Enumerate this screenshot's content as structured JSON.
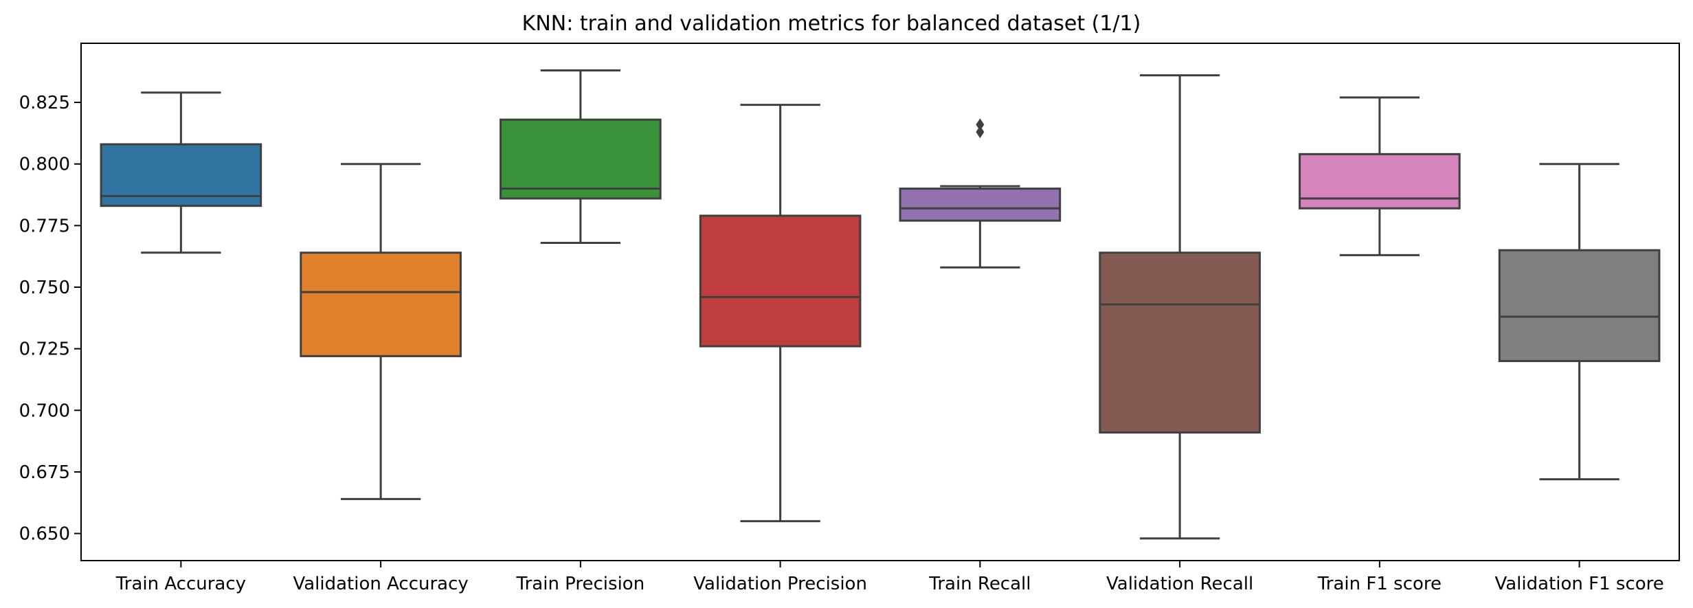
{
  "chart_data": {
    "type": "box",
    "title": "KNN: train and validation metrics for balanced dataset (1/1)",
    "xlabel": "",
    "ylabel": "",
    "ylim": [
      0.639,
      0.849
    ],
    "yticks": [
      "0.650",
      "0.675",
      "0.700",
      "0.725",
      "0.750",
      "0.775",
      "0.800",
      "0.825"
    ],
    "categories": [
      "Train Accuracy",
      "Validation Accuracy",
      "Train Precision",
      "Validation Precision",
      "Train Recall",
      "Validation Recall",
      "Train F1 score",
      "Validation F1 score"
    ],
    "boxes": [
      {
        "label": "Train Accuracy",
        "whisker_low": 0.764,
        "q1": 0.783,
        "median": 0.787,
        "q3": 0.808,
        "whisker_high": 0.829,
        "outliers": [],
        "color": "#3274a1"
      },
      {
        "label": "Validation Accuracy",
        "whisker_low": 0.664,
        "q1": 0.722,
        "median": 0.748,
        "q3": 0.764,
        "whisker_high": 0.8,
        "outliers": [],
        "color": "#e1812c"
      },
      {
        "label": "Train Precision",
        "whisker_low": 0.768,
        "q1": 0.786,
        "median": 0.79,
        "q3": 0.818,
        "whisker_high": 0.838,
        "outliers": [],
        "color": "#3a923a"
      },
      {
        "label": "Validation Precision",
        "whisker_low": 0.655,
        "q1": 0.726,
        "median": 0.746,
        "q3": 0.779,
        "whisker_high": 0.824,
        "outliers": [],
        "color": "#c03d3e"
      },
      {
        "label": "Train Recall",
        "whisker_low": 0.758,
        "q1": 0.777,
        "median": 0.782,
        "q3": 0.79,
        "whisker_high": 0.791,
        "outliers": [
          0.813,
          0.816
        ],
        "color": "#9372b2"
      },
      {
        "label": "Validation Recall",
        "whisker_low": 0.648,
        "q1": 0.691,
        "median": 0.743,
        "q3": 0.764,
        "whisker_high": 0.836,
        "outliers": [],
        "color": "#845b53"
      },
      {
        "label": "Train F1 score",
        "whisker_low": 0.763,
        "q1": 0.782,
        "median": 0.786,
        "q3": 0.804,
        "whisker_high": 0.827,
        "outliers": [],
        "color": "#d684bd"
      },
      {
        "label": "Validation F1 score",
        "whisker_low": 0.672,
        "q1": 0.72,
        "median": 0.738,
        "q3": 0.765,
        "whisker_high": 0.8,
        "outliers": [],
        "color": "#7f7f7f"
      }
    ],
    "grid": false,
    "legend": "none"
  }
}
